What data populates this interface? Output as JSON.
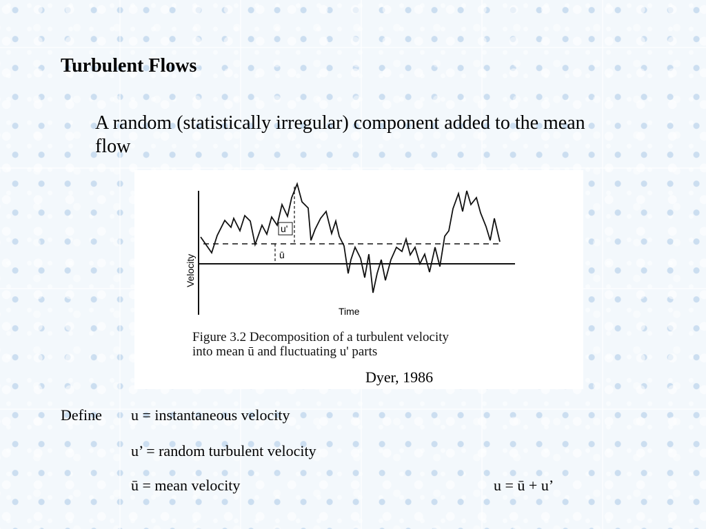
{
  "slide": {
    "title": "Turbulent Flows",
    "subtitle": "A random (statistically irregular) component added to the mean flow"
  },
  "figure": {
    "ylabel": "Velocity",
    "xlabel": "Time",
    "u_prime_label": "u'",
    "u_bar_label": "ū",
    "caption_line1": "Figure 3.2 Decomposition of a turbulent velocity",
    "caption_line2": "into mean ū and fluctuating u' parts",
    "credit": "Dyer, 1986"
  },
  "definitions": {
    "define_label": "Define",
    "line1": "u = instantaneous velocity",
    "line2": "u’ = random turbulent velocity",
    "line3": "ū = mean velocity",
    "equation": "u = ū + u’"
  },
  "colors": {
    "background": "#cfe0f1",
    "figure_bg": "#ffffff",
    "ink": "#000000"
  }
}
